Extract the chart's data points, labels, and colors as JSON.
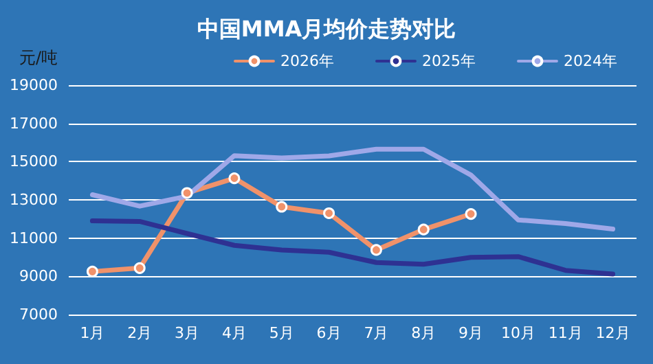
{
  "chart_data": {
    "type": "line",
    "title": "中国MMA月均价走势对比",
    "ylabel": "元/吨",
    "categories": [
      "1月",
      "2月",
      "3月",
      "4月",
      "5月",
      "6月",
      "7月",
      "8月",
      "9月",
      "10月",
      "11月",
      "12月"
    ],
    "series": [
      {
        "name": "2026年",
        "color": "#f0926a",
        "marker": "circle",
        "values": [
          9250,
          9430,
          13360,
          14130,
          12640,
          12300,
          10380,
          11450,
          12260,
          null,
          null,
          null
        ]
      },
      {
        "name": "2025年",
        "color": "#2e3192",
        "marker": "none",
        "values": [
          11900,
          11870,
          11240,
          10620,
          10380,
          10260,
          9720,
          9630,
          9990,
          10030,
          9310,
          9120
        ]
      },
      {
        "name": "2024年",
        "color": "#9fa8e8",
        "marker": "none",
        "values": [
          13270,
          12670,
          13190,
          15310,
          15190,
          15300,
          15650,
          15650,
          14300,
          11950,
          11760,
          11470
        ]
      }
    ],
    "ylim": [
      7000,
      19000
    ],
    "yticks": [
      7000,
      9000,
      11000,
      13000,
      15000,
      17000,
      19000
    ],
    "grid": "y",
    "legend": "top"
  }
}
